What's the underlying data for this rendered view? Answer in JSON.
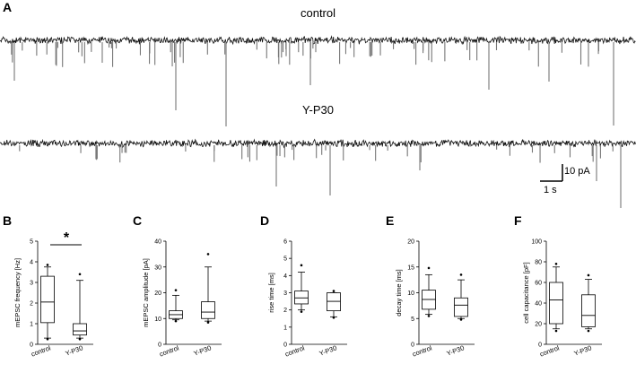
{
  "panels_top": {
    "label": "A",
    "traces": [
      {
        "title": "control"
      },
      {
        "title": "Y-P30"
      }
    ],
    "scalebar": {
      "y_label": "10 pA",
      "x_label": "1 s"
    }
  },
  "chart_data": [
    {
      "panel": "B",
      "type": "box",
      "ylabel": "mEPSC frequency [Hz]",
      "ylim": [
        0,
        5
      ],
      "yticks": [
        0,
        1,
        2,
        3,
        4,
        5
      ],
      "categories": [
        "control",
        "Y-P30"
      ],
      "boxes": [
        {
          "name": "control",
          "whisker_low": 0.3,
          "q1": 1.05,
          "median": 2.05,
          "q3": 3.3,
          "whisker_high": 3.75,
          "outliers": [
            0.25,
            3.85
          ]
        },
        {
          "name": "Y-P30",
          "whisker_low": 0.3,
          "q1": 0.45,
          "median": 0.65,
          "q3": 1.0,
          "whisker_high": 3.1,
          "outliers": [
            0.25,
            3.4
          ]
        }
      ],
      "significance": "*"
    },
    {
      "panel": "C",
      "type": "box",
      "ylabel": "mEPSC amplitude [pA]",
      "ylim": [
        0,
        40
      ],
      "yticks": [
        0,
        10,
        20,
        30,
        40
      ],
      "categories": [
        "control",
        "Y-P30"
      ],
      "boxes": [
        {
          "name": "control",
          "whisker_low": 9.5,
          "q1": 10.0,
          "median": 11.5,
          "q3": 13.0,
          "whisker_high": 19.0,
          "outliers": [
            9.0,
            21.0
          ]
        },
        {
          "name": "Y-P30",
          "whisker_low": 9.0,
          "q1": 10.0,
          "median": 12.5,
          "q3": 16.5,
          "whisker_high": 30.0,
          "outliers": [
            8.5,
            35.0
          ]
        }
      ]
    },
    {
      "panel": "D",
      "type": "box",
      "ylabel": "rise time [ms]",
      "ylim": [
        0,
        6
      ],
      "yticks": [
        0,
        1,
        2,
        3,
        4,
        5,
        6
      ],
      "categories": [
        "control",
        "Y-P30"
      ],
      "boxes": [
        {
          "name": "control",
          "whisker_low": 2.0,
          "q1": 2.35,
          "median": 2.7,
          "q3": 3.1,
          "whisker_high": 4.2,
          "outliers": [
            1.9,
            4.6
          ]
        },
        {
          "name": "Y-P30",
          "whisker_low": 1.6,
          "q1": 1.95,
          "median": 2.5,
          "q3": 3.0,
          "whisker_high": 3.0,
          "outliers": [
            1.55,
            3.1
          ]
        }
      ]
    },
    {
      "panel": "E",
      "type": "box",
      "ylabel": "decay time [ms]",
      "ylim": [
        0,
        20
      ],
      "yticks": [
        0,
        5,
        10,
        15,
        20
      ],
      "categories": [
        "control",
        "Y-P30"
      ],
      "boxes": [
        {
          "name": "control",
          "whisker_low": 5.8,
          "q1": 6.8,
          "median": 8.7,
          "q3": 10.5,
          "whisker_high": 13.5,
          "outliers": [
            5.5,
            14.8
          ]
        },
        {
          "name": "Y-P30",
          "whisker_low": 5.0,
          "q1": 5.4,
          "median": 7.6,
          "q3": 9.0,
          "whisker_high": 12.5,
          "outliers": [
            4.8,
            13.5
          ]
        }
      ]
    },
    {
      "panel": "F",
      "type": "box",
      "ylabel": "cell capacitance [pF]",
      "ylim": [
        0,
        100
      ],
      "yticks": [
        0,
        20,
        40,
        60,
        80,
        100
      ],
      "categories": [
        "control",
        "Y-P30"
      ],
      "boxes": [
        {
          "name": "control",
          "whisker_low": 15.0,
          "q1": 20.0,
          "median": 43.0,
          "q3": 60.0,
          "whisker_high": 75.0,
          "outliers": [
            13.0,
            78.0
          ]
        },
        {
          "name": "Y-P30",
          "whisker_low": 15.0,
          "q1": 17.0,
          "median": 28.0,
          "q3": 48.0,
          "whisker_high": 63.0,
          "outliers": [
            13.0,
            67.0
          ]
        }
      ]
    }
  ]
}
